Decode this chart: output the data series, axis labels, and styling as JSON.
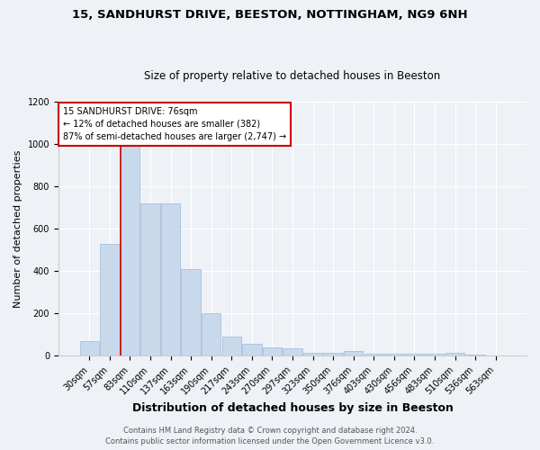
{
  "title1": "15, SANDHURST DRIVE, BEESTON, NOTTINGHAM, NG9 6NH",
  "title2": "Size of property relative to detached houses in Beeston",
  "xlabel": "Distribution of detached houses by size in Beeston",
  "ylabel": "Number of detached properties",
  "categories": [
    "30sqm",
    "57sqm",
    "83sqm",
    "110sqm",
    "137sqm",
    "163sqm",
    "190sqm",
    "217sqm",
    "243sqm",
    "270sqm",
    "297sqm",
    "323sqm",
    "350sqm",
    "376sqm",
    "403sqm",
    "430sqm",
    "456sqm",
    "483sqm",
    "510sqm",
    "536sqm",
    "563sqm"
  ],
  "values": [
    70,
    530,
    1000,
    720,
    720,
    410,
    200,
    90,
    55,
    40,
    35,
    15,
    15,
    22,
    10,
    10,
    10,
    10,
    15,
    5,
    0
  ],
  "bar_color": "#c9d9ec",
  "bar_edge_color": "#a0b8d8",
  "red_line_x": 1.525,
  "annotation_text": "15 SANDHURST DRIVE: 76sqm\n← 12% of detached houses are smaller (382)\n87% of semi-detached houses are larger (2,747) →",
  "annotation_box_color": "#ffffff",
  "annotation_box_edge": "#cc0000",
  "red_line_color": "#cc0000",
  "footer1": "Contains HM Land Registry data © Crown copyright and database right 2024.",
  "footer2": "Contains public sector information licensed under the Open Government Licence v3.0.",
  "ylim": [
    0,
    1200
  ],
  "yticks": [
    0,
    200,
    400,
    600,
    800,
    1000,
    1200
  ],
  "bg_color": "#eef2f7",
  "title1_fontsize": 9.5,
  "title2_fontsize": 8.5,
  "xlabel_fontsize": 9,
  "ylabel_fontsize": 8,
  "tick_fontsize": 7,
  "annot_fontsize": 7,
  "footer_fontsize": 6
}
